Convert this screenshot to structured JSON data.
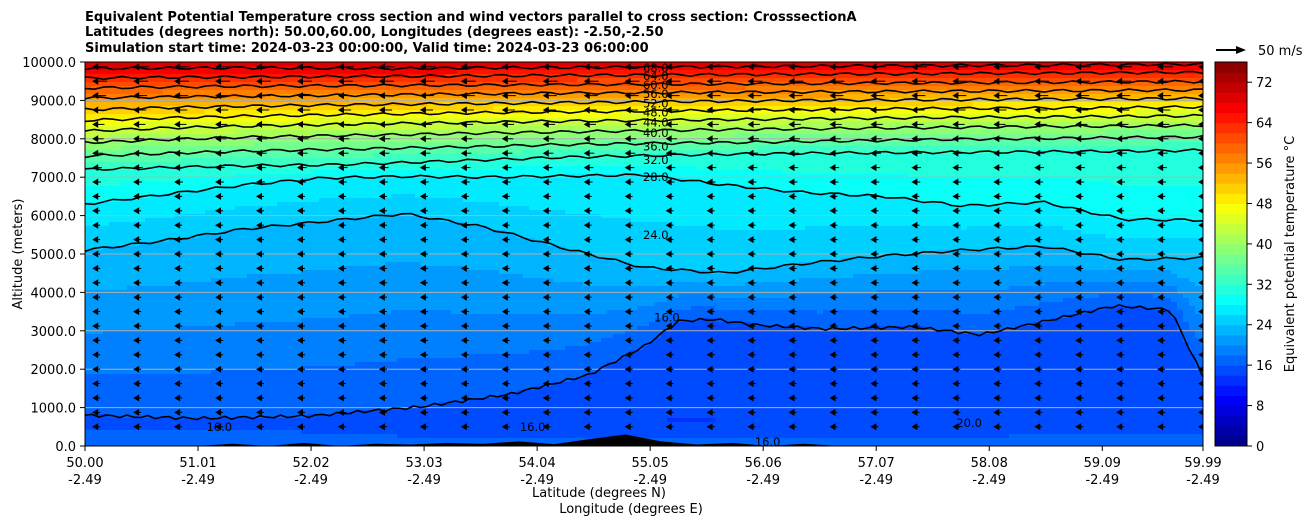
{
  "chart_data": {
    "type": "contour",
    "title_lines": [
      "Equivalent Potential Temperature cross section and wind vectors parallel to cross section: CrosssectionA",
      "Latitudes (degrees north): 50.00,60.00, Longitudes (degrees east): -2.50,-2.50",
      "Simulation start time: 2024-03-23 00:00:00, Valid time: 2024-03-23 06:00:00"
    ],
    "xlabel_lat": "Latitude (degrees N)",
    "xlabel_lon": "Longitude (degrees E)",
    "ylabel": "Altitude (meters)",
    "colorbar_label": "Equivalent potential temperature °C",
    "colormap": "jet",
    "vector_key_label": "50 m/s",
    "xlim": [
      50.0,
      59.99
    ],
    "ylim": [
      0,
      10000
    ],
    "x_ticks": [
      {
        "lat": "50.00",
        "lon": "-2.49"
      },
      {
        "lat": "51.01",
        "lon": "-2.49"
      },
      {
        "lat": "52.02",
        "lon": "-2.49"
      },
      {
        "lat": "53.03",
        "lon": "-2.49"
      },
      {
        "lat": "54.04",
        "lon": "-2.49"
      },
      {
        "lat": "55.05",
        "lon": "-2.49"
      },
      {
        "lat": "56.06",
        "lon": "-2.49"
      },
      {
        "lat": "57.07",
        "lon": "-2.49"
      },
      {
        "lat": "58.08",
        "lon": "-2.49"
      },
      {
        "lat": "59.09",
        "lon": "-2.49"
      },
      {
        "lat": "59.99",
        "lon": "-2.49"
      }
    ],
    "y_ticks": [
      "0.0",
      "1000.0",
      "2000.0",
      "3000.0",
      "4000.0",
      "5000.0",
      "6000.0",
      "7000.0",
      "8000.0",
      "9000.0",
      "10000.0"
    ],
    "colorbar_ticks": [
      "0",
      "8",
      "16",
      "24",
      "32",
      "40",
      "48",
      "56",
      "64",
      "72"
    ],
    "colorbar_range": [
      0,
      76
    ],
    "grid": true,
    "contour_labels": [
      "68.0",
      "64.0",
      "60.0",
      "56.0",
      "52.0",
      "48.0",
      "44.0",
      "40.0",
      "36.0",
      "32.0",
      "28.0",
      "24.0",
      "16.0",
      "20.0"
    ],
    "isolines": [
      {
        "level": 28,
        "alt": [
          6300,
          6550,
          6800,
          6980,
          7020,
          7000,
          7030,
          7060,
          6800,
          6600,
          6500,
          6250,
          6350,
          5900,
          5880
        ]
      },
      {
        "level": 24,
        "alt": [
          5100,
          5350,
          5650,
          5850,
          6050,
          5700,
          5150,
          4650,
          4500,
          4750,
          4950,
          5100,
          5200,
          4850,
          4900
        ]
      },
      {
        "level": 32,
        "alt": [
          7200,
          7250,
          7300,
          7320,
          7380,
          7450,
          7520,
          7560,
          7600,
          7620,
          7640,
          7650,
          7660,
          7680,
          7700
        ]
      },
      {
        "level": 36,
        "alt": [
          7550,
          7620,
          7680,
          7720,
          7760,
          7800,
          7850,
          7880,
          7900,
          7930,
          7960,
          7990,
          8010,
          8030,
          8050
        ]
      },
      {
        "level": 40,
        "alt": [
          7900,
          7980,
          8040,
          8080,
          8110,
          8150,
          8180,
          8210,
          8240,
          8260,
          8280,
          8300,
          8320,
          8330,
          8350
        ]
      },
      {
        "level": 44,
        "alt": [
          8200,
          8280,
          8330,
          8370,
          8400,
          8430,
          8460,
          8480,
          8500,
          8520,
          8540,
          8560,
          8570,
          8580,
          8600
        ]
      },
      {
        "level": 48,
        "alt": [
          8480,
          8540,
          8590,
          8620,
          8650,
          8680,
          8700,
          8720,
          8740,
          8760,
          8780,
          8790,
          8800,
          8810,
          8830
        ]
      },
      {
        "level": 52,
        "alt": [
          8760,
          8810,
          8850,
          8880,
          8900,
          8920,
          8940,
          8960,
          8980,
          9000,
          9010,
          9020,
          9030,
          9040,
          9050
        ]
      },
      {
        "level": 56,
        "alt": [
          9060,
          9090,
          9110,
          9130,
          9150,
          9170,
          9190,
          9200,
          9210,
          9220,
          9230,
          9240,
          9250,
          9260,
          9270
        ]
      },
      {
        "level": 60,
        "alt": [
          9320,
          9350,
          9370,
          9380,
          9390,
          9400,
          9410,
          9420,
          9430,
          9440,
          9450,
          9460,
          9470,
          9480,
          9490
        ]
      },
      {
        "level": 64,
        "alt": [
          9580,
          9600,
          9610,
          9620,
          9630,
          9640,
          9650,
          9660,
          9670,
          9680,
          9690,
          9700,
          9710,
          9720,
          9730
        ]
      },
      {
        "level": 68,
        "alt": [
          9830,
          9840,
          9850,
          9840,
          9830,
          9850,
          9860,
          9870,
          9880,
          9890,
          9900,
          9910,
          9920,
          9930,
          9940
        ]
      }
    ],
    "isoline_16_alt": [
      800,
      720,
      780,
      1020,
      1350,
      1850,
      2600,
      3250,
      3300,
      3150,
      3050,
      3100,
      2900,
      3200,
      3650,
      3550,
      1800
    ],
    "isoline_16_lat": [
      50.0,
      51.0,
      52.0,
      53.0,
      53.8,
      54.5,
      55.0,
      55.3,
      55.6,
      56.0,
      56.6,
      57.4,
      58.0,
      58.5,
      59.2,
      59.7,
      59.99
    ],
    "terrain_alt": [
      0,
      60,
      0,
      80,
      0,
      60,
      40,
      80,
      60,
      120,
      50,
      180,
      300,
      120,
      40,
      80,
      0,
      60,
      0,
      0,
      0,
      0
    ],
    "wind_key": {
      "speed_ms": 50
    }
  }
}
